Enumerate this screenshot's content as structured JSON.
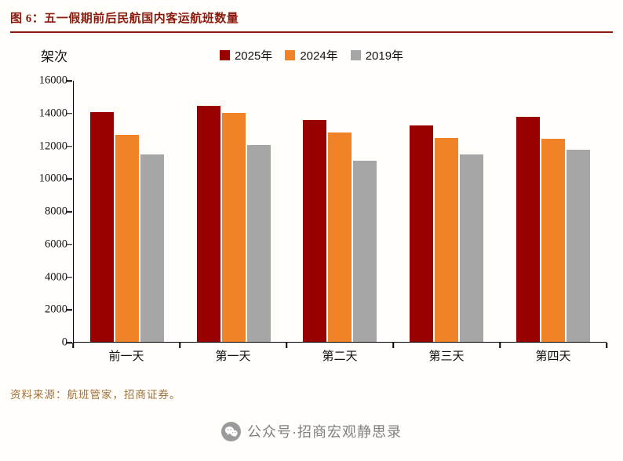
{
  "header": {
    "title": "图 6：五一假期前后民航国内客运航班数量"
  },
  "chart_data": {
    "type": "bar",
    "title": "五一假期前后民航国内客运航班数量",
    "unit_label": "架次",
    "categories": [
      "前一天",
      "第一天",
      "第二天",
      "第三天",
      "第四天"
    ],
    "series": [
      {
        "name": "2025年",
        "color": "#990000",
        "values": [
          14100,
          14450,
          13600,
          13250,
          13800
        ]
      },
      {
        "name": "2024年",
        "color": "#F08228",
        "values": [
          12700,
          14050,
          12850,
          12500,
          12450
        ]
      },
      {
        "name": "2019年",
        "color": "#A6A6A6",
        "values": [
          11500,
          12050,
          11100,
          11500,
          11750
        ]
      }
    ],
    "ylim": [
      0,
      16000
    ],
    "ytick_step": 2000,
    "grid": false,
    "legend_position": "top"
  },
  "source_note": "资料来源：航班管家，招商证券。",
  "footer": {
    "wechat_label": "公众号·招商宏观静思录"
  },
  "colors": {
    "title_accent": "#8B1A0E",
    "source_text": "#A0713C",
    "footer_text": "#808080",
    "axis": "#000000"
  }
}
